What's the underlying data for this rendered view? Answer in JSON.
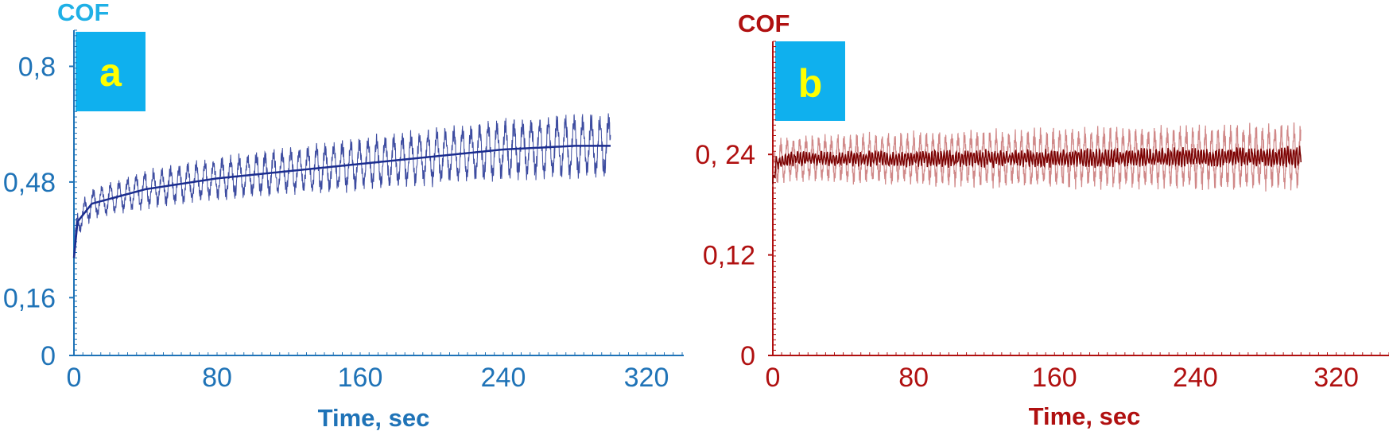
{
  "chart_data": [
    {
      "type": "line",
      "panel_label": "a",
      "ylabel": "COF",
      "xlabel": "Time, sec",
      "xlim": [
        0,
        340
      ],
      "ylim": [
        0,
        0.9
      ],
      "x_ticks": [
        0,
        80,
        160,
        240,
        320
      ],
      "x_tick_labels": [
        "0",
        "80",
        "160",
        "240",
        "320"
      ],
      "y_ticks": [
        0,
        0.16,
        0.48,
        0.8
      ],
      "y_tick_labels": [
        "0",
        "0,16",
        "0,48",
        "0,8"
      ],
      "grid": false,
      "colors": {
        "axis": "#1f73b7",
        "ylabel": "#1fb0e6",
        "series": "#1b2d8f",
        "badge": "#0fb0ee",
        "letter": "#ffff00"
      },
      "series": [
        {
          "x_range": [
            0,
            300
          ],
          "mean": [
            [
              0,
              0.27
            ],
            [
              2,
              0.37
            ],
            [
              10,
              0.42
            ],
            [
              40,
              0.46
            ],
            [
              80,
              0.49
            ],
            [
              120,
              0.51
            ],
            [
              160,
              0.53
            ],
            [
              200,
              0.55
            ],
            [
              240,
              0.57
            ],
            [
              280,
              0.58
            ],
            [
              300,
              0.58
            ]
          ],
          "oscillation_amplitude": [
            [
              0,
              0.03
            ],
            [
              40,
              0.04
            ],
            [
              120,
              0.05
            ],
            [
              200,
              0.06
            ],
            [
              300,
              0.07
            ]
          ],
          "oscillation_period": 4.8
        }
      ]
    },
    {
      "type": "line",
      "panel_label": "b",
      "ylabel": "COF",
      "xlabel": "Time, sec",
      "xlim": [
        0,
        350
      ],
      "ylim": [
        0,
        0.375
      ],
      "x_ticks": [
        0,
        80,
        160,
        240,
        320
      ],
      "x_tick_labels": [
        "0",
        "80",
        "160",
        "240",
        "320"
      ],
      "y_ticks": [
        0,
        0.12,
        0.24
      ],
      "y_tick_labels": [
        "0",
        "0,12",
        "0, 24"
      ],
      "grid": false,
      "colors": {
        "axis": "#b01010",
        "ylabel": "#b01010",
        "series": "#7a0000",
        "series_band": "#c46a6a",
        "badge": "#0fb0ee",
        "letter": "#ffff00"
      },
      "series": [
        {
          "x_range": [
            0,
            300
          ],
          "mean": [
            [
              0,
              0.205
            ],
            [
              2,
              0.23
            ],
            [
              10,
              0.235
            ],
            [
              100,
              0.235
            ],
            [
              200,
              0.236
            ],
            [
              300,
              0.237
            ]
          ],
          "oscillation_amplitude": [
            [
              0,
              0.02
            ],
            [
              100,
              0.025
            ],
            [
              300,
              0.03
            ]
          ],
          "oscillation_period": 3.6
        }
      ]
    }
  ]
}
